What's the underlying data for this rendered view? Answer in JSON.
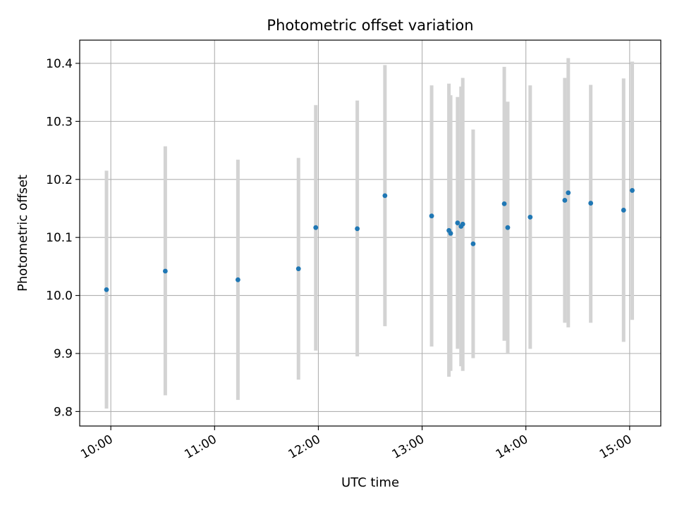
{
  "chart_data": {
    "type": "scatter",
    "title": "Photometric offset variation",
    "xlabel": "UTC time",
    "ylabel": "Photometric offset",
    "xlim": [
      "09:42",
      "15:18"
    ],
    "ylim": [
      9.775,
      10.44
    ],
    "x_ticks": [
      "10:00",
      "11:00",
      "12:00",
      "13:00",
      "14:00",
      "15:00"
    ],
    "y_ticks": [
      "9.8",
      "9.9",
      "10.0",
      "10.1",
      "10.2",
      "10.3",
      "10.4"
    ],
    "grid": true,
    "colors": {
      "point": "#1f77b4",
      "errorbar": "#d3d3d3",
      "grid": "#b0b0b0"
    },
    "points": [
      {
        "x": "09:57:30",
        "y": 10.01,
        "err_low": 9.805,
        "err_high": 10.215
      },
      {
        "x": "10:31:30",
        "y": 10.042,
        "err_low": 9.828,
        "err_high": 10.257
      },
      {
        "x": "11:13:30",
        "y": 10.027,
        "err_low": 9.82,
        "err_high": 10.234
      },
      {
        "x": "11:48:30",
        "y": 10.046,
        "err_low": 9.855,
        "err_high": 10.237
      },
      {
        "x": "11:58:30",
        "y": 10.117,
        "err_low": 9.905,
        "err_high": 10.328
      },
      {
        "x": "12:22:30",
        "y": 10.115,
        "err_low": 9.895,
        "err_high": 10.336
      },
      {
        "x": "12:38:30",
        "y": 10.172,
        "err_low": 9.947,
        "err_high": 10.397
      },
      {
        "x": "13:05:30",
        "y": 10.137,
        "err_low": 9.912,
        "err_high": 10.362
      },
      {
        "x": "13:15:30",
        "y": 10.112,
        "err_low": 9.86,
        "err_high": 10.365
      },
      {
        "x": "13:16:30",
        "y": 10.107,
        "err_low": 9.87,
        "err_high": 10.345
      },
      {
        "x": "13:20:30",
        "y": 10.125,
        "err_low": 9.908,
        "err_high": 10.342
      },
      {
        "x": "13:22:30",
        "y": 10.119,
        "err_low": 9.878,
        "err_high": 10.36
      },
      {
        "x": "13:23:30",
        "y": 10.123,
        "err_low": 9.87,
        "err_high": 10.375
      },
      {
        "x": "13:29:30",
        "y": 10.089,
        "err_low": 9.892,
        "err_high": 10.286
      },
      {
        "x": "13:47:30",
        "y": 10.158,
        "err_low": 9.922,
        "err_high": 10.394
      },
      {
        "x": "13:49:30",
        "y": 10.117,
        "err_low": 9.9,
        "err_high": 10.334
      },
      {
        "x": "14:02:30",
        "y": 10.135,
        "err_low": 9.908,
        "err_high": 10.362
      },
      {
        "x": "14:22:30",
        "y": 10.164,
        "err_low": 9.953,
        "err_high": 10.375
      },
      {
        "x": "14:24:30",
        "y": 10.177,
        "err_low": 9.945,
        "err_high": 10.409
      },
      {
        "x": "14:37:30",
        "y": 10.159,
        "err_low": 9.953,
        "err_high": 10.363
      },
      {
        "x": "14:56:30",
        "y": 10.147,
        "err_low": 9.92,
        "err_high": 10.374
      },
      {
        "x": "15:01:30",
        "y": 10.181,
        "err_low": 9.958,
        "err_high": 10.403
      }
    ]
  }
}
